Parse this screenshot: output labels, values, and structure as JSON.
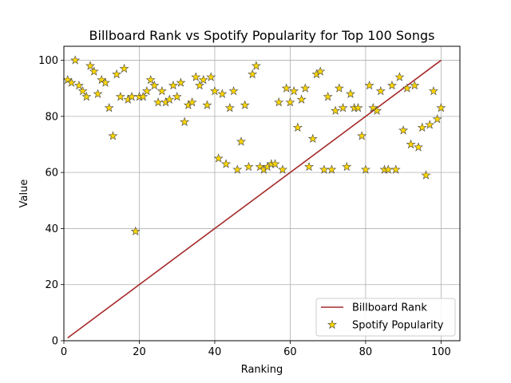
{
  "chart_data": {
    "type": "line+scatter",
    "title": "Billboard Rank vs Spotify Popularity for Top 100 Songs",
    "xlabel": "Ranking",
    "ylabel": "Value",
    "xlim": [
      0,
      105
    ],
    "ylim": [
      0,
      105
    ],
    "xticks": [
      0,
      20,
      40,
      60,
      80,
      100
    ],
    "yticks": [
      0,
      20,
      40,
      60,
      80,
      100
    ],
    "grid": true,
    "legend_position": "lower-right",
    "colors": {
      "line": "#a52a2a",
      "marker_fill": "#ffd700",
      "marker_edge": "#444444",
      "grid": "#b0b0b0"
    },
    "series": [
      {
        "name": "Billboard Rank",
        "kind": "line",
        "x": [
          1,
          100
        ],
        "y": [
          1,
          100
        ]
      },
      {
        "name": "Spotify Popularity",
        "kind": "scatter",
        "marker": "star",
        "x": [
          1,
          2,
          3,
          4,
          5,
          6,
          7,
          8,
          9,
          10,
          11,
          12,
          13,
          14,
          15,
          16,
          17,
          18,
          19,
          20,
          21,
          22,
          23,
          24,
          25,
          26,
          27,
          28,
          29,
          30,
          31,
          32,
          33,
          34,
          35,
          36,
          37,
          38,
          39,
          40,
          41,
          42,
          43,
          44,
          45,
          46,
          47,
          48,
          49,
          50,
          51,
          52,
          53,
          54,
          55,
          56,
          57,
          58,
          59,
          60,
          61,
          62,
          63,
          64,
          65,
          66,
          67,
          68,
          69,
          70,
          71,
          72,
          73,
          74,
          75,
          76,
          77,
          78,
          79,
          80,
          81,
          82,
          83,
          84,
          85,
          86,
          87,
          88,
          89,
          90,
          91,
          92,
          93,
          94,
          95,
          96,
          97,
          98,
          99,
          100
        ],
        "y": [
          93,
          92,
          100,
          91,
          89,
          87,
          98,
          96,
          88,
          93,
          92,
          83,
          73,
          95,
          87,
          97,
          86,
          87,
          39,
          87,
          87,
          89,
          93,
          91,
          85,
          89,
          85,
          86,
          91,
          87,
          92,
          78,
          84,
          85,
          94,
          91,
          93,
          84,
          94,
          89,
          65,
          88,
          63,
          83,
          89,
          61,
          71,
          84,
          62,
          95,
          98,
          62,
          61,
          62,
          63,
          63,
          85,
          61,
          90,
          85,
          89,
          76,
          86,
          90,
          62,
          72,
          95,
          96,
          61,
          87,
          61,
          82,
          90,
          83,
          62,
          88,
          83,
          83,
          73,
          61,
          91,
          83,
          82,
          89,
          61,
          61,
          91,
          61,
          94,
          75,
          90,
          70,
          91,
          69,
          76,
          59,
          77,
          89,
          79,
          83
        ]
      }
    ]
  }
}
